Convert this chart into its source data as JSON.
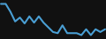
{
  "x": [
    0,
    1,
    2,
    3,
    4,
    5,
    6,
    7,
    8,
    9,
    10,
    11,
    12,
    13,
    14,
    15,
    16,
    17,
    18,
    19,
    20,
    21,
    22
  ],
  "y": [
    9.0,
    9.0,
    7.0,
    4.5,
    5.5,
    4.0,
    5.8,
    4.2,
    5.8,
    4.2,
    3.0,
    1.8,
    1.5,
    3.5,
    1.5,
    1.5,
    1.5,
    1.0,
    2.5,
    1.0,
    2.5,
    1.8,
    2.5
  ],
  "line_color": "#4a9fd4",
  "linewidth": 1.5,
  "background_color": "#111111",
  "ylim": [
    0,
    10
  ],
  "xlim": [
    -0.2,
    22.2
  ]
}
